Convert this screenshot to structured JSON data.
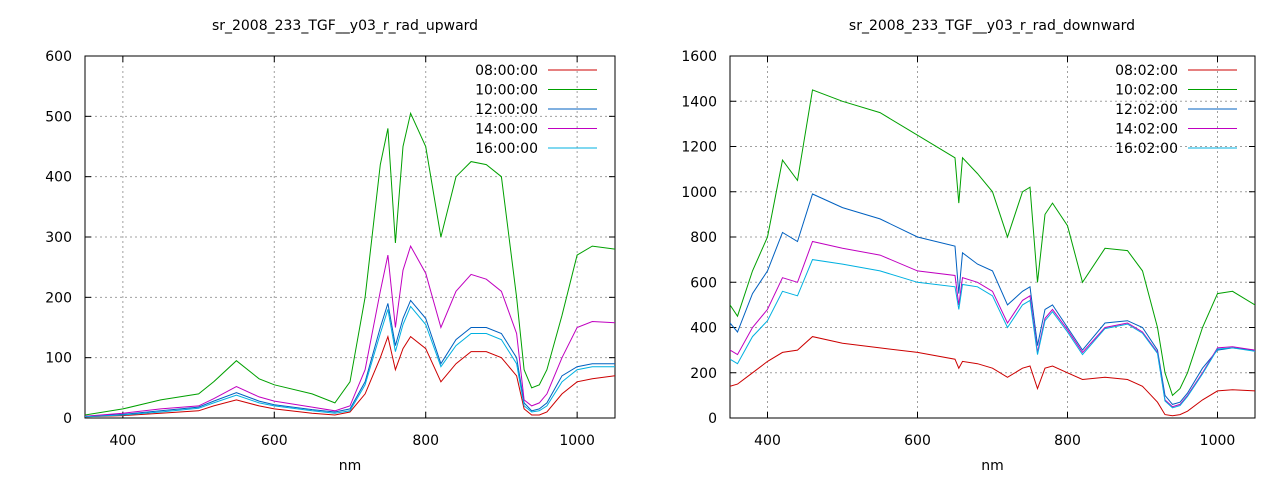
{
  "chart_data": [
    {
      "type": "line",
      "title": "sr_2008_233_TGF__y03_r_rad_upward",
      "xlabel": "nm",
      "ylabel": "",
      "xlim": [
        350,
        1050
      ],
      "ylim": [
        0,
        600
      ],
      "xticks": [
        400,
        600,
        800,
        1000
      ],
      "yticks": [
        0,
        100,
        200,
        300,
        400,
        500,
        600
      ],
      "grid": true,
      "legend_position": "top-right",
      "series": [
        {
          "name": "08:00:00",
          "color": "#cc0000",
          "x": [
            350,
            400,
            450,
            500,
            520,
            550,
            580,
            600,
            650,
            680,
            700,
            720,
            740,
            750,
            760,
            770,
            780,
            800,
            820,
            840,
            860,
            880,
            900,
            920,
            930,
            940,
            950,
            960,
            980,
            1000,
            1020,
            1050
          ],
          "y": [
            2,
            4,
            8,
            12,
            20,
            30,
            20,
            15,
            8,
            5,
            10,
            40,
            100,
            135,
            80,
            115,
            135,
            115,
            60,
            90,
            110,
            110,
            100,
            70,
            15,
            5,
            5,
            10,
            40,
            60,
            65,
            70
          ]
        },
        {
          "name": "10:00:00",
          "color": "#00a000",
          "x": [
            350,
            400,
            450,
            500,
            520,
            550,
            580,
            600,
            650,
            680,
            700,
            720,
            740,
            750,
            760,
            770,
            780,
            800,
            820,
            840,
            860,
            880,
            900,
            920,
            930,
            940,
            950,
            960,
            980,
            1000,
            1020,
            1050
          ],
          "y": [
            5,
            15,
            30,
            40,
            60,
            95,
            65,
            55,
            40,
            25,
            60,
            200,
            420,
            480,
            290,
            450,
            505,
            450,
            300,
            400,
            425,
            420,
            400,
            200,
            80,
            50,
            55,
            80,
            170,
            270,
            285,
            280
          ]
        },
        {
          "name": "12:00:00",
          "color": "#0060c0",
          "x": [
            350,
            400,
            450,
            500,
            520,
            550,
            580,
            600,
            650,
            680,
            700,
            720,
            740,
            750,
            760,
            770,
            780,
            800,
            820,
            840,
            860,
            880,
            900,
            920,
            930,
            940,
            950,
            960,
            980,
            1000,
            1020,
            1050
          ],
          "y": [
            3,
            6,
            12,
            18,
            28,
            42,
            28,
            22,
            14,
            10,
            15,
            60,
            150,
            190,
            120,
            165,
            195,
            165,
            90,
            130,
            150,
            150,
            140,
            100,
            25,
            12,
            15,
            25,
            70,
            85,
            90,
            90
          ]
        },
        {
          "name": "14:00:00",
          "color": "#c000c0",
          "x": [
            350,
            400,
            450,
            500,
            520,
            550,
            580,
            600,
            650,
            680,
            700,
            720,
            740,
            750,
            760,
            770,
            780,
            800,
            820,
            840,
            860,
            880,
            900,
            920,
            930,
            940,
            950,
            960,
            980,
            1000,
            1020,
            1050
          ],
          "y": [
            3,
            8,
            15,
            20,
            32,
            52,
            35,
            28,
            18,
            12,
            20,
            80,
            210,
            270,
            150,
            245,
            285,
            240,
            150,
            210,
            238,
            230,
            210,
            140,
            30,
            20,
            25,
            40,
            100,
            150,
            160,
            158
          ]
        },
        {
          "name": "16:00:00",
          "color": "#00b0e0",
          "x": [
            350,
            400,
            450,
            500,
            520,
            550,
            580,
            600,
            650,
            680,
            700,
            720,
            740,
            750,
            760,
            770,
            780,
            800,
            820,
            840,
            860,
            880,
            900,
            920,
            930,
            940,
            950,
            960,
            980,
            1000,
            1020,
            1050
          ],
          "y": [
            2,
            5,
            10,
            16,
            25,
            38,
            25,
            20,
            12,
            8,
            12,
            55,
            140,
            180,
            110,
            155,
            185,
            155,
            85,
            120,
            140,
            140,
            130,
            90,
            20,
            10,
            12,
            20,
            60,
            80,
            85,
            85
          ]
        }
      ]
    },
    {
      "type": "line",
      "title": "sr_2008_233_TGF__y03_r_rad_downward",
      "xlabel": "nm",
      "ylabel": "",
      "xlim": [
        350,
        1050
      ],
      "ylim": [
        0,
        1600
      ],
      "xticks": [
        400,
        600,
        800,
        1000
      ],
      "yticks": [
        0,
        200,
        400,
        600,
        800,
        1000,
        1200,
        1400,
        1600
      ],
      "grid": true,
      "legend_position": "top-right",
      "series": [
        {
          "name": "08:02:00",
          "color": "#cc0000",
          "x": [
            350,
            360,
            380,
            400,
            420,
            440,
            460,
            500,
            550,
            600,
            650,
            655,
            660,
            680,
            700,
            720,
            740,
            750,
            760,
            770,
            780,
            800,
            820,
            850,
            880,
            900,
            920,
            930,
            940,
            950,
            960,
            980,
            1000,
            1020,
            1050
          ],
          "y": [
            140,
            150,
            200,
            250,
            290,
            300,
            360,
            330,
            310,
            290,
            260,
            220,
            250,
            240,
            220,
            180,
            220,
            230,
            130,
            220,
            230,
            200,
            170,
            180,
            170,
            140,
            70,
            15,
            10,
            15,
            30,
            80,
            120,
            125,
            120
          ]
        },
        {
          "name": "10:02:00",
          "color": "#00a000",
          "x": [
            350,
            360,
            380,
            400,
            420,
            440,
            460,
            500,
            550,
            600,
            650,
            655,
            660,
            680,
            700,
            720,
            740,
            750,
            760,
            770,
            780,
            800,
            820,
            850,
            880,
            900,
            920,
            930,
            940,
            950,
            960,
            980,
            1000,
            1020,
            1050
          ],
          "y": [
            500,
            450,
            650,
            800,
            1140,
            1050,
            1450,
            1400,
            1350,
            1250,
            1150,
            950,
            1150,
            1080,
            1000,
            800,
            1000,
            1020,
            600,
            900,
            950,
            850,
            600,
            750,
            740,
            650,
            400,
            200,
            100,
            130,
            200,
            400,
            550,
            560,
            500
          ]
        },
        {
          "name": "12:02:00",
          "color": "#0060c0",
          "x": [
            350,
            360,
            380,
            400,
            420,
            440,
            460,
            500,
            550,
            600,
            650,
            655,
            660,
            680,
            700,
            720,
            740,
            750,
            760,
            770,
            780,
            800,
            820,
            850,
            880,
            900,
            920,
            930,
            940,
            950,
            960,
            980,
            1000,
            1020,
            1050
          ],
          "y": [
            420,
            380,
            550,
            650,
            820,
            780,
            990,
            930,
            880,
            800,
            760,
            550,
            730,
            680,
            650,
            500,
            560,
            580,
            320,
            480,
            500,
            400,
            300,
            420,
            430,
            400,
            300,
            100,
            60,
            70,
            110,
            220,
            300,
            310,
            300
          ]
        },
        {
          "name": "14:02:00",
          "color": "#c000c0",
          "x": [
            350,
            360,
            380,
            400,
            420,
            440,
            460,
            500,
            550,
            600,
            650,
            655,
            660,
            680,
            700,
            720,
            740,
            750,
            760,
            770,
            780,
            800,
            820,
            850,
            880,
            900,
            920,
            930,
            940,
            950,
            960,
            980,
            1000,
            1020,
            1050
          ],
          "y": [
            300,
            280,
            400,
            480,
            620,
            600,
            780,
            750,
            720,
            650,
            630,
            500,
            620,
            600,
            560,
            420,
            520,
            540,
            290,
            440,
            480,
            390,
            290,
            400,
            420,
            380,
            290,
            80,
            50,
            60,
            100,
            200,
            310,
            315,
            300
          ]
        },
        {
          "name": "16:02:00",
          "color": "#00b0e0",
          "x": [
            350,
            360,
            380,
            400,
            420,
            440,
            460,
            500,
            550,
            600,
            650,
            655,
            660,
            680,
            700,
            720,
            740,
            750,
            760,
            770,
            780,
            800,
            820,
            850,
            880,
            900,
            920,
            930,
            940,
            950,
            960,
            980,
            1000,
            1020,
            1050
          ],
          "y": [
            260,
            240,
            360,
            430,
            560,
            540,
            700,
            680,
            650,
            600,
            580,
            480,
            590,
            580,
            540,
            400,
            500,
            520,
            280,
            430,
            470,
            380,
            280,
            395,
            415,
            375,
            285,
            75,
            45,
            55,
            95,
            195,
            305,
            310,
            295
          ]
        }
      ]
    }
  ]
}
